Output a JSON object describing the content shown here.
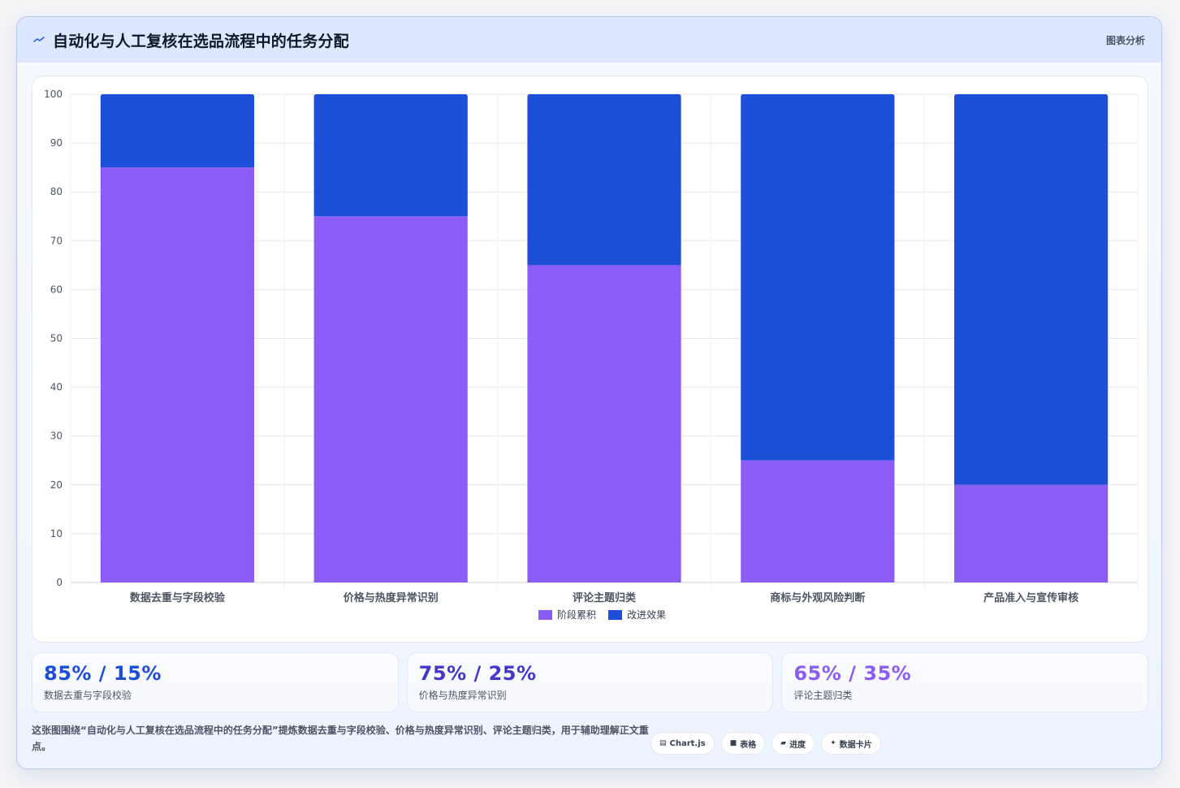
{
  "header": {
    "title": "自动化与人工复核在选品流程中的任务分配",
    "tag": "图表分析",
    "icon": "trend-line-icon"
  },
  "chart_data": {
    "type": "bar",
    "stacked": true,
    "categories": [
      "数据去重与字段校验",
      "价格与热度异常识别",
      "评论主题归类",
      "商标与外观风险判断",
      "产品准入与宣传审核"
    ],
    "series": [
      {
        "name": "阶段累积",
        "values": [
          85,
          75,
          65,
          25,
          20
        ],
        "color": "#8b5cf6"
      },
      {
        "name": "改进效果",
        "values": [
          15,
          25,
          35,
          75,
          80
        ],
        "color": "#1d4ed8"
      }
    ],
    "ylim": [
      0,
      100
    ],
    "yticks": [
      0,
      10,
      20,
      30,
      40,
      50,
      60,
      70,
      80,
      90,
      100
    ],
    "grid": true,
    "legend": "bottom-center"
  },
  "stats": [
    {
      "value": "85% / 15%",
      "label": "数据去重与字段校验",
      "color": "#1d4ed8"
    },
    {
      "value": "75% / 25%",
      "label": "价格与热度异常识别",
      "color": "#4338ca"
    },
    {
      "value": "65% / 35%",
      "label": "评论主题归类",
      "color": "#8b5cf6"
    }
  ],
  "footer": {
    "text": "这张图围绕“自动化与人工复核在选品流程中的任务分配”提炼数据去重与字段校验、价格与热度异常识别、评论主题归类，用于辅助理解正文重点。",
    "pills": [
      {
        "icon": "chart-icon",
        "glyph": "▤",
        "label": "Chart.js"
      },
      {
        "icon": "table-icon",
        "glyph": "■",
        "label": "表格"
      },
      {
        "icon": "progress-icon",
        "glyph": "▰",
        "label": "进度"
      },
      {
        "icon": "sparkle-icon",
        "glyph": "✦",
        "label": "数据卡片"
      }
    ]
  }
}
